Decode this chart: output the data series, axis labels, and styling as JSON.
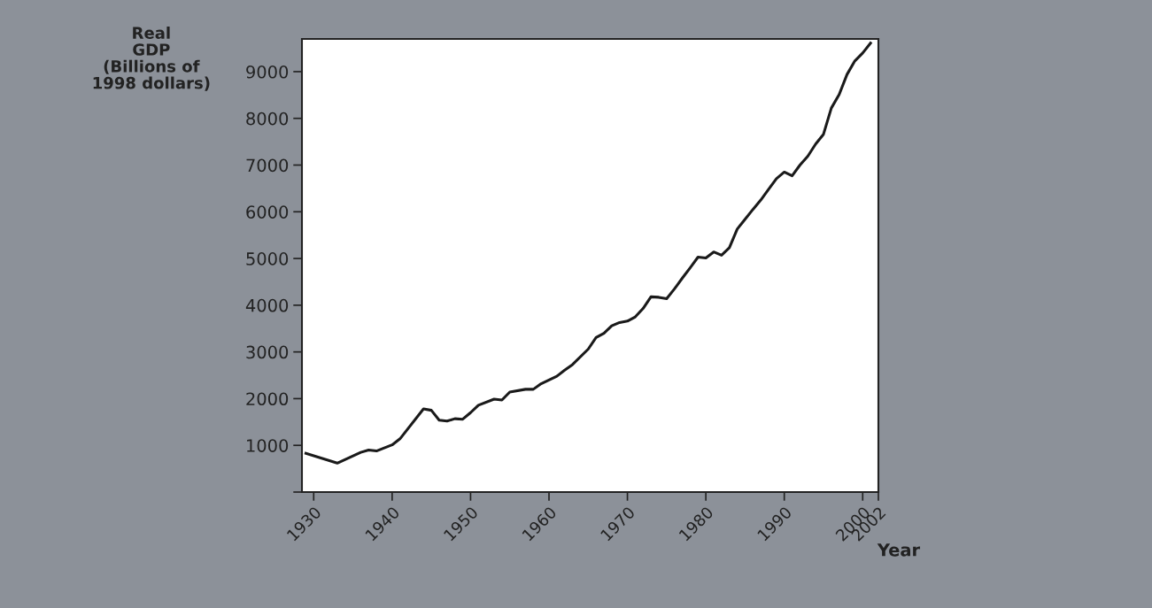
{
  "chart_data": {
    "type": "line",
    "xlabel": "Year",
    "ylabel": "Real\nGDP\n(Billions of\n1998 dollars)",
    "x": [
      1929,
      1933,
      1936,
      1937,
      1938,
      1940,
      1941,
      1944,
      1945,
      1946,
      1947,
      1948,
      1949,
      1950,
      1951,
      1953,
      1954,
      1955,
      1957,
      1958,
      1959,
      1961,
      1962,
      1963,
      1965,
      1966,
      1967,
      1968,
      1969,
      1970,
      1971,
      1972,
      1973,
      1974,
      1975,
      1976,
      1977,
      1978,
      1979,
      1980,
      1981,
      1982,
      1983,
      1984,
      1985,
      1986,
      1987,
      1988,
      1989,
      1990,
      1991,
      1992,
      1993,
      1994,
      1995,
      1996,
      1997,
      1998,
      1999,
      2000,
      2001
    ],
    "series": [
      {
        "color": "#1a1a1a",
        "values": [
          830,
          620,
          850,
          900,
          880,
          1010,
          1140,
          1780,
          1750,
          1540,
          1520,
          1570,
          1560,
          1700,
          1860,
          1990,
          1970,
          2140,
          2200,
          2200,
          2320,
          2480,
          2610,
          2730,
          3060,
          3310,
          3400,
          3560,
          3630,
          3660,
          3750,
          3930,
          4180,
          4170,
          4140,
          4350,
          4580,
          4800,
          5030,
          5010,
          5140,
          5070,
          5230,
          5630,
          5840,
          6050,
          6250,
          6480,
          6710,
          6850,
          6770,
          7000,
          7190,
          7450,
          7660,
          8220,
          8510,
          8940,
          9230,
          9400,
          9610
        ]
      }
    ],
    "xlim": [
      1928.5,
      2002
    ],
    "xticks": [
      1930,
      1940,
      1950,
      1960,
      1970,
      1980,
      1990,
      2000,
      2002
    ],
    "ylim": [
      0,
      9700
    ],
    "yticks": [
      {
        "value": 0,
        "label": null
      },
      1000,
      2000,
      3000,
      4000,
      5000,
      6000,
      7000,
      8000,
      9000
    ],
    "grid": false,
    "legend": false,
    "marker": "none",
    "line_style": "solid"
  }
}
